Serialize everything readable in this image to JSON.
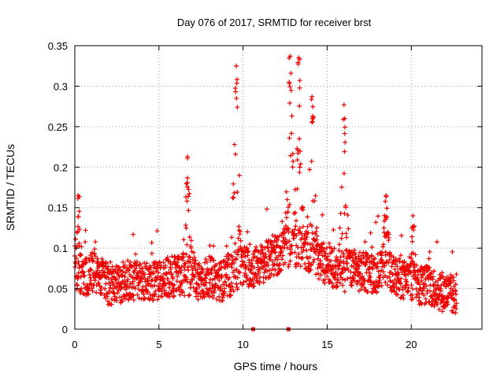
{
  "chart_data": {
    "type": "scatter",
    "title": "Day 076 of 2017, SRMTID for receiver brst",
    "xlabel": "GPS time / hours",
    "ylabel": "SRMTID / TECUs",
    "xlim": [
      0,
      24.2
    ],
    "ylim": [
      0,
      0.35
    ],
    "xticks": [
      0,
      5,
      10,
      15,
      20
    ],
    "yticks": [
      0,
      0.05,
      0.1,
      0.15,
      0.2,
      0.25,
      0.3,
      0.35
    ],
    "xtick_labels": [
      "0",
      "5",
      "10",
      "15",
      "20"
    ],
    "ytick_labels": [
      "0",
      "0.05",
      "0.1",
      "0.15",
      "0.2",
      "0.25",
      "0.3",
      "0.35"
    ],
    "grid": true,
    "marker": "plus",
    "color": "#ee0000",
    "series": [
      {
        "name": "SRMTID",
        "description": "approximate baseline level vs time (hours)",
        "x": [
          0,
          0.5,
          1,
          1.5,
          2,
          2.5,
          3,
          3.5,
          4,
          4.5,
          5,
          5.5,
          6,
          6.5,
          7,
          7.5,
          8,
          8.5,
          9,
          9.5,
          10,
          10.5,
          11,
          11.5,
          12,
          12.5,
          13,
          13.5,
          14,
          14.5,
          15,
          15.5,
          16,
          16.5,
          17,
          17.5,
          18,
          18.5,
          19,
          19.5,
          20,
          20.5,
          21,
          21.5,
          22,
          22.7
        ],
        "y": [
          0.07,
          0.065,
          0.07,
          0.065,
          0.055,
          0.055,
          0.06,
          0.06,
          0.06,
          0.06,
          0.06,
          0.065,
          0.065,
          0.065,
          0.065,
          0.06,
          0.065,
          0.06,
          0.06,
          0.07,
          0.08,
          0.075,
          0.08,
          0.085,
          0.09,
          0.1,
          0.1,
          0.1,
          0.095,
          0.085,
          0.08,
          0.075,
          0.07,
          0.075,
          0.07,
          0.07,
          0.07,
          0.075,
          0.065,
          0.06,
          0.06,
          0.055,
          0.055,
          0.05,
          0.045,
          0.04
        ]
      }
    ],
    "notable_peaks": [
      {
        "x": 0.2,
        "y": 0.165
      },
      {
        "x": 6.7,
        "y": 0.213
      },
      {
        "x": 9.6,
        "y": 0.325
      },
      {
        "x": 12.8,
        "y": 0.337
      },
      {
        "x": 13.3,
        "y": 0.335
      },
      {
        "x": 14.1,
        "y": 0.287
      },
      {
        "x": 16.0,
        "y": 0.277
      },
      {
        "x": 18.5,
        "y": 0.165
      },
      {
        "x": 20.1,
        "y": 0.14
      }
    ],
    "gap_markers": [
      {
        "x": 10.6,
        "y": 0
      },
      {
        "x": 12.7,
        "y": 0
      }
    ]
  }
}
